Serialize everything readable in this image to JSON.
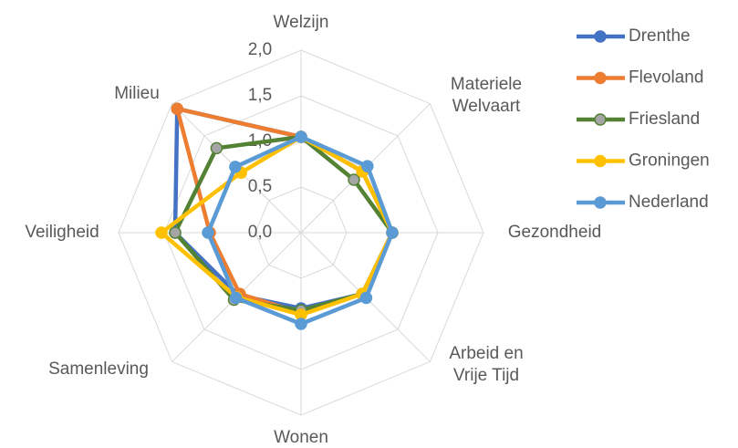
{
  "chart_data": {
    "type": "radar",
    "categories": [
      "Welzijn",
      "Materiele Welvaart",
      "Gezondheid",
      "Arbeid en Vrije Tijd",
      "Wonen",
      "Samenleving",
      "Veiligheid",
      "Milieu"
    ],
    "series": [
      {
        "name": "Drenthe",
        "color": "#4472c4",
        "marker_fill": "#4472c4",
        "values": [
          1.05,
          0.95,
          1.0,
          0.95,
          0.83,
          0.97,
          1.38,
          1.92
        ]
      },
      {
        "name": "Flevoland",
        "color": "#ed7d31",
        "marker_fill": "#ed7d31",
        "values": [
          1.05,
          0.95,
          1.0,
          0.95,
          0.88,
          0.95,
          1.0,
          1.92
        ]
      },
      {
        "name": "Friesland",
        "color": "#548235",
        "marker_fill": "#a5a5a5",
        "values": [
          1.05,
          0.82,
          1.0,
          0.95,
          0.85,
          1.04,
          1.38,
          1.31
        ]
      },
      {
        "name": "Groningen",
        "color": "#ffc000",
        "marker_fill": "#ffc000",
        "values": [
          1.05,
          0.95,
          1.0,
          0.95,
          0.9,
          1.0,
          1.53,
          0.93
        ]
      },
      {
        "name": "Nederland",
        "color": "#5b9bd5",
        "marker_fill": "#5b9bd5",
        "values": [
          1.05,
          1.03,
          1.0,
          1.01,
          1.0,
          1.01,
          1.02,
          1.02
        ]
      }
    ],
    "rlim": [
      0,
      2
    ],
    "rticks": [
      {
        "value": 0,
        "label": "0,0"
      },
      {
        "value": 0.5,
        "label": "0,5"
      },
      {
        "value": 1,
        "label": "1,0"
      },
      {
        "value": 1.5,
        "label": "1,5"
      },
      {
        "value": 2,
        "label": "2,0"
      }
    ],
    "grid": true,
    "legend": "right"
  }
}
